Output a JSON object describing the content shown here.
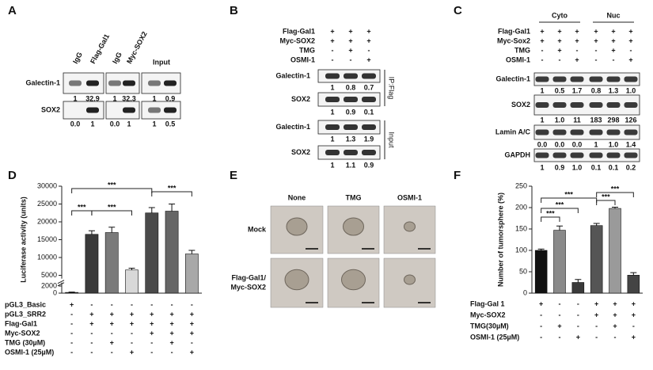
{
  "panel_a": {
    "letter": "A",
    "lanes": [
      "IgG",
      "Flag-Gal1",
      "IgG",
      "Myc-SOX2",
      "Input"
    ],
    "blots": [
      {
        "label": "Galectin-1",
        "values": [
          "1",
          "32.9",
          "1",
          "32.3",
          "1",
          "0.9"
        ]
      },
      {
        "label": "SOX2",
        "values": [
          "0.0",
          "1",
          "0.0",
          "1",
          "1",
          "0.5"
        ]
      }
    ]
  },
  "panel_b": {
    "letter": "B",
    "conditions": [
      {
        "name": "Flag-Gal1",
        "values": [
          "+",
          "+",
          "+"
        ]
      },
      {
        "name": "Myc-SOX2",
        "values": [
          "+",
          "+",
          "+"
        ]
      },
      {
        "name": "TMG",
        "values": [
          "-",
          "+",
          "-"
        ]
      },
      {
        "name": "OSMI-1",
        "values": [
          "-",
          "-",
          "+"
        ]
      }
    ],
    "groups": [
      {
        "label": "IP:Flag",
        "blots": [
          {
            "label": "Galectin-1",
            "values": [
              "1",
              "0.8",
              "0.7"
            ]
          },
          {
            "label": "SOX2",
            "values": [
              "1",
              "0.9",
              "0.1"
            ]
          }
        ]
      },
      {
        "label": "Input",
        "blots": [
          {
            "label": "Galectin-1",
            "values": [
              "1",
              "1.3",
              "1.9"
            ]
          },
          {
            "label": "SOX2",
            "values": [
              "1",
              "1.1",
              "0.9"
            ]
          }
        ]
      }
    ]
  },
  "panel_c": {
    "letter": "C",
    "fractions": [
      "Cyto",
      "Nuc"
    ],
    "conditions": [
      {
        "name": "Flag-Gal1",
        "values": [
          "+",
          "+",
          "+",
          "+",
          "+",
          "+"
        ]
      },
      {
        "name": "Myc-Sox2",
        "values": [
          "+",
          "+",
          "+",
          "+",
          "+",
          "+"
        ]
      },
      {
        "name": "TMG",
        "values": [
          "-",
          "+",
          "-",
          "-",
          "+",
          "-"
        ]
      },
      {
        "name": "OSMI-1",
        "values": [
          "-",
          "-",
          "+",
          "-",
          "-",
          "+"
        ]
      }
    ],
    "blots": [
      {
        "label": "Galectin-1",
        "values": [
          "1",
          "0.5",
          "1.7",
          "0.8",
          "1.3",
          "1.0"
        ]
      },
      {
        "label": "SOX2",
        "values": [
          "1",
          "1.0",
          "11",
          "183",
          "298",
          "126"
        ]
      },
      {
        "label": "Lamin A/C",
        "values": [
          "0.0",
          "0.0",
          "0.0",
          "1",
          "1.0",
          "1.4"
        ]
      },
      {
        "label": "GAPDH",
        "values": [
          "1",
          "0.9",
          "1.0",
          "0.1",
          "0.1",
          "0.2"
        ]
      }
    ]
  },
  "panel_e": {
    "letter": "E",
    "columns": [
      "None",
      "TMG",
      "OSMI-1"
    ],
    "rows": [
      {
        "label_lines": [
          "Mock"
        ]
      },
      {
        "label_lines": [
          "Flag-Gal1/",
          "Myc-SOX2"
        ]
      }
    ]
  },
  "chart_data": [
    {
      "type": "bar",
      "letter": "D",
      "ylabel": "Luciferase activity (units)",
      "values": [
        200,
        16500,
        17000,
        6500,
        22500,
        23000,
        11000
      ],
      "errors": [
        100,
        1000,
        1500,
        500,
        1500,
        2000,
        1000
      ],
      "colors": [
        "#111111",
        "#3a3a3a",
        "#7a7a7a",
        "#d8d8d8",
        "#4a4a4a",
        "#666666",
        "#a8a8a8"
      ],
      "ylim": [
        0,
        30000
      ],
      "yticks": [
        0,
        2000,
        5000,
        10000,
        15000,
        20000,
        25000,
        30000
      ],
      "annotations": [
        "***",
        "***",
        "***",
        "***"
      ],
      "conditions": [
        {
          "name": "pGL3_Basic",
          "values": [
            "+",
            "-",
            "-",
            "-",
            "-",
            "-",
            "-"
          ]
        },
        {
          "name": "pGL3_SRR2",
          "values": [
            "-",
            "+",
            "+",
            "+",
            "+",
            "+",
            "+"
          ]
        },
        {
          "name": "Flag-Gal1",
          "values": [
            "-",
            "+",
            "+",
            "+",
            "+",
            "+",
            "+"
          ]
        },
        {
          "name": "Myc-SOX2",
          "values": [
            "-",
            "-",
            "-",
            "-",
            "+",
            "+",
            "+"
          ]
        },
        {
          "name": "TMG (30µM)",
          "values": [
            "-",
            "-",
            "+",
            "-",
            "-",
            "+",
            "-"
          ]
        },
        {
          "name": "OSMI-1 (25µM)",
          "values": [
            "-",
            "-",
            "-",
            "+",
            "-",
            "-",
            "+"
          ]
        }
      ]
    },
    {
      "type": "bar",
      "letter": "F",
      "ylabel": "Number of tumorsphere (%)",
      "values": [
        100,
        147,
        25,
        158,
        198,
        42
      ],
      "errors": [
        3,
        10,
        7,
        5,
        3,
        6
      ],
      "colors": [
        "#111111",
        "#8a8a8a",
        "#3a3a3a",
        "#555555",
        "#9a9a9a",
        "#444444"
      ],
      "ylim": [
        0,
        250
      ],
      "yticks": [
        0,
        50,
        100,
        150,
        200,
        250
      ],
      "annotations": [
        "***",
        "***",
        "***",
        "***",
        "***"
      ],
      "conditions": [
        {
          "name": "Flag-Gal 1",
          "values": [
            "+",
            "-",
            "-",
            "+",
            "+",
            "+"
          ]
        },
        {
          "name": "Myc-SOX2",
          "values": [
            "-",
            "-",
            "-",
            "+",
            "+",
            "+"
          ]
        },
        {
          "name": "TMG(30µM)",
          "values": [
            "-",
            "+",
            "-",
            "-",
            "+",
            "-"
          ]
        },
        {
          "name": "OSMI-1 (25µM)",
          "values": [
            "-",
            "-",
            "+",
            "-",
            "-",
            "+"
          ]
        }
      ]
    }
  ]
}
